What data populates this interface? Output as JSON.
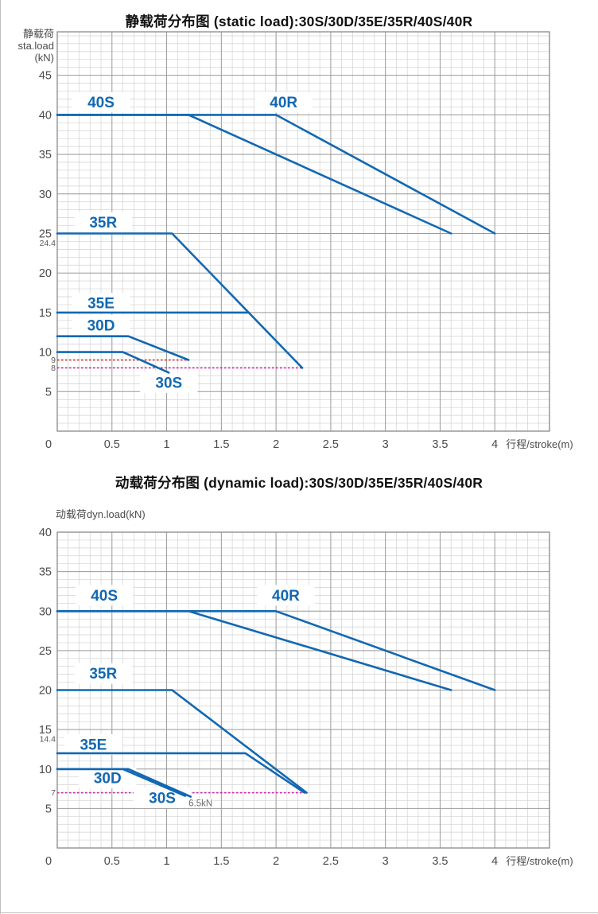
{
  "colors": {
    "line_blue": "#1268b2",
    "series_label_blue": "#1268b2",
    "grid_minor": "#d2d2d2",
    "grid_major": "#9c9c9c",
    "frame": "#898989",
    "axis_text": "#4b4b4b",
    "small_tick_text": "#5a5a5a",
    "annotation_text": "#6e6e6e",
    "ref_red": "#e02929",
    "ref_magenta": "#d122a8",
    "title_text": "#111111",
    "label_patch": "#ffffff"
  },
  "chart_data": [
    {
      "type": "line",
      "title": "静载荷分布图 (static load):30S/30D/35E/35R/40S/40R",
      "ylabel_lines": [
        "静载荷",
        "sta.load",
        "(kN)"
      ],
      "xlabel": "行程/stroke(m)",
      "xlim": [
        0,
        4.5
      ],
      "ylim": [
        0,
        50.5
      ],
      "x_ticks": [
        0,
        0.5,
        1,
        1.5,
        2,
        2.5,
        3,
        3.5,
        4
      ],
      "y_ticks": [
        5,
        10,
        15,
        20,
        25,
        30,
        35,
        40,
        45
      ],
      "x_minor_step": 0.1,
      "y_minor_step": 1,
      "grid": true,
      "extra_y_ticks": [
        {
          "label": "24.4",
          "value": 24.4
        },
        {
          "label": "9",
          "value": 9
        },
        {
          "label": "8",
          "value": 8
        }
      ],
      "ref_lines": [
        {
          "y": 9,
          "x_start": 0,
          "x_end": 1.2,
          "color_key": "ref_red"
        },
        {
          "y": 8,
          "x_start": 0,
          "x_end": 2.24,
          "color_key": "ref_magenta"
        }
      ],
      "series": [
        {
          "name": "40S",
          "points": [
            [
              0,
              40
            ],
            [
              1.2,
              40
            ],
            [
              3.6,
              25
            ]
          ]
        },
        {
          "name": "40R",
          "points": [
            [
              0,
              40
            ],
            [
              2.0,
              40
            ],
            [
              4.0,
              25
            ]
          ]
        },
        {
          "name": "35R",
          "points": [
            [
              0,
              25
            ],
            [
              1.05,
              25
            ],
            [
              2.24,
              8
            ]
          ]
        },
        {
          "name": "35E",
          "points": [
            [
              0,
              15
            ],
            [
              1.75,
              15
            ]
          ]
        },
        {
          "name": "30D",
          "points": [
            [
              0,
              12
            ],
            [
              0.65,
              12
            ],
            [
              1.2,
              9
            ]
          ]
        },
        {
          "name": "30S",
          "points": [
            [
              0,
              10
            ],
            [
              0.6,
              10
            ],
            [
              1.02,
              7.4
            ]
          ]
        }
      ],
      "series_labels": [
        {
          "text": "40S",
          "x": 0.4,
          "y": 41.6
        },
        {
          "text": "40R",
          "x": 2.07,
          "y": 41.6
        },
        {
          "text": "35R",
          "x": 0.42,
          "y": 26.4
        },
        {
          "text": "35E",
          "x": 0.4,
          "y": 16.2
        },
        {
          "text": "30D",
          "x": 0.4,
          "y": 13.4
        },
        {
          "text": "30S",
          "x": 1.02,
          "y": 6.15
        }
      ],
      "annotations": []
    },
    {
      "type": "line",
      "title": "动载荷分布图 (dynamic load):30S/30D/35E/35R/40S/40R",
      "ylabel_lines": [
        "动载荷dyn.load(kN)"
      ],
      "xlabel": "行程/stroke(m)",
      "xlim": [
        0,
        4.5
      ],
      "ylim": [
        0,
        40
      ],
      "x_ticks": [
        0,
        0.5,
        1,
        1.5,
        2,
        2.5,
        3,
        3.5,
        4
      ],
      "y_ticks": [
        5,
        10,
        15,
        20,
        25,
        30,
        35,
        40
      ],
      "x_minor_step": 0.1,
      "y_minor_step": 1,
      "grid": true,
      "extra_y_ticks": [
        {
          "label": "14.4",
          "value": 14.4
        },
        {
          "label": "7",
          "value": 7
        }
      ],
      "ref_lines": [
        {
          "y": 7,
          "x_start": 0,
          "x_end": 2.28,
          "color_key": "ref_magenta"
        }
      ],
      "series": [
        {
          "name": "40S",
          "points": [
            [
              0,
              30
            ],
            [
              1.2,
              30
            ],
            [
              3.6,
              20
            ]
          ]
        },
        {
          "name": "40R",
          "points": [
            [
              0,
              30
            ],
            [
              2.0,
              30
            ],
            [
              4.0,
              20
            ]
          ]
        },
        {
          "name": "35R",
          "points": [
            [
              0,
              20
            ],
            [
              1.05,
              20
            ],
            [
              2.28,
              7
            ]
          ]
        },
        {
          "name": "35E",
          "points": [
            [
              0,
              12
            ],
            [
              1.72,
              12
            ],
            [
              2.26,
              7
            ]
          ]
        },
        {
          "name": "30D",
          "points": [
            [
              0,
              10
            ],
            [
              0.65,
              10
            ],
            [
              1.22,
              6.5
            ]
          ]
        },
        {
          "name": "30S",
          "points": [
            [
              0,
              10
            ],
            [
              0.6,
              10
            ],
            [
              1.17,
              6.6
            ]
          ]
        }
      ],
      "series_labels": [
        {
          "text": "40S",
          "x": 0.43,
          "y": 32.0
        },
        {
          "text": "40R",
          "x": 2.09,
          "y": 32.0
        },
        {
          "text": "35R",
          "x": 0.42,
          "y": 22.1
        },
        {
          "text": "35E",
          "x": 0.33,
          "y": 13.1
        },
        {
          "text": "30D",
          "x": 0.46,
          "y": 8.85
        },
        {
          "text": "30S",
          "x": 0.96,
          "y": 6.35
        }
      ],
      "annotations": [
        {
          "text": "6.5kN",
          "x": 1.31,
          "y": 5.7
        }
      ]
    }
  ]
}
